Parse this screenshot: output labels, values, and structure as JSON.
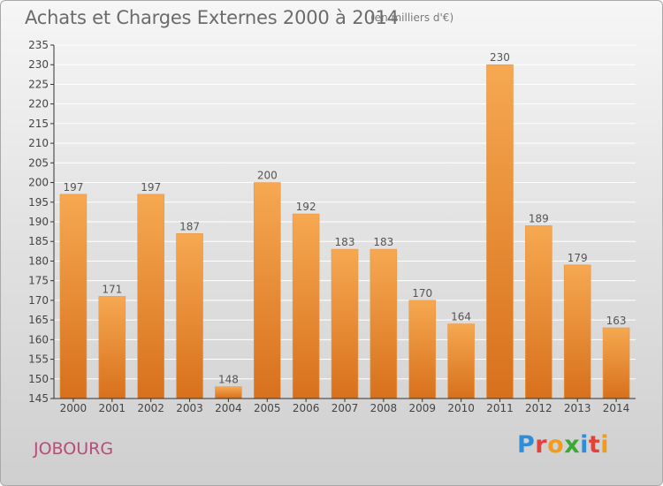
{
  "header": {
    "title": "Achats et Charges Externes 2000 à 2014",
    "unit": "(en milliers d'€)"
  },
  "footer": {
    "place": "JOBOURG",
    "logo_letters": [
      "P",
      "r",
      "o",
      "x",
      "i",
      "t",
      "i"
    ],
    "logo_colors": [
      "#2e8fd8",
      "#e5413a",
      "#f29b1c",
      "#3aa935",
      "#2e8fd8",
      "#e5413a",
      "#f29b1c"
    ]
  },
  "colors": {
    "bar_top": "#f6a851",
    "bar_bottom": "#d8701c",
    "axis": "#333333",
    "grid": "#ffffff",
    "title": "#6b6b6b"
  },
  "chart_data": {
    "type": "bar",
    "title": "Achats et Charges Externes 2000 à 2014",
    "subtitle": "(en milliers d'€)",
    "xlabel": "",
    "ylabel": "",
    "categories": [
      "2000",
      "2001",
      "2002",
      "2003",
      "2004",
      "2005",
      "2006",
      "2007",
      "2008",
      "2009",
      "2010",
      "2011",
      "2012",
      "2013",
      "2014"
    ],
    "values": [
      197,
      171,
      197,
      187,
      148,
      200,
      192,
      183,
      183,
      170,
      164,
      230,
      189,
      179,
      163
    ],
    "ylim": [
      145,
      235
    ],
    "yticks": [
      145,
      150,
      155,
      160,
      165,
      170,
      175,
      180,
      185,
      190,
      195,
      200,
      205,
      210,
      215,
      220,
      225,
      230,
      235
    ],
    "grid": true,
    "legend": "none"
  }
}
